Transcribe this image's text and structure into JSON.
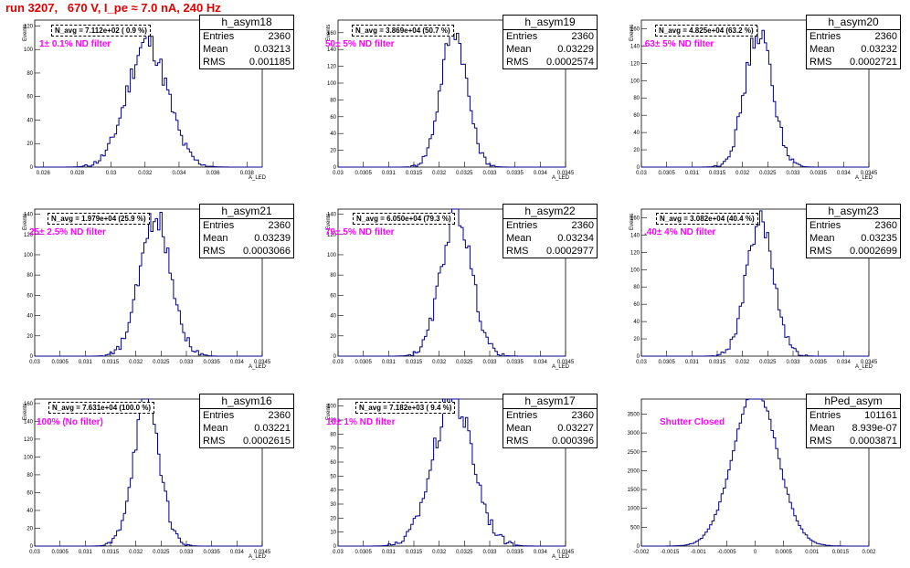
{
  "run_title": "run 3207,   670 V, I_pe ≈ 7.0 nA, 240 Hz",
  "colors": {
    "histogram": "#00008b",
    "title": "#e00000",
    "label": "#ff00ff"
  },
  "chart_data": [
    {
      "type": "histogram",
      "name": "h_asym18",
      "entries": "2360",
      "mean": "0.03213",
      "rms": "0.001185",
      "navg": "N_avg = 7.112e+02 ( 0.9 %)",
      "label": "1± 0.1% ND filter",
      "ylabel": "Events",
      "xlabel": "A_LED",
      "mu": 0.03213,
      "sigma": 0.001185,
      "xlim": [
        0.0255,
        0.0389
      ],
      "ylim": [
        0,
        125
      ],
      "yticks": [
        0,
        20,
        40,
        60,
        80,
        100,
        120
      ],
      "xticks": [
        0.026,
        0.028,
        0.03,
        0.032,
        0.034,
        0.036,
        0.038
      ],
      "xtick_labels": [
        "0.026",
        "0.028",
        "0.03",
        "0.032",
        "0.034",
        "0.036",
        "0.038"
      ]
    },
    {
      "type": "histogram",
      "name": "h_asym19",
      "entries": "2360",
      "mean": "0.03229",
      "rms": "0.0002574",
      "navg": "N_avg = 3.869e+04 (50.7 %)",
      "label": "50± 5% ND filter",
      "ylabel": "Events",
      "xlabel": "A_LED",
      "mu": 0.03229,
      "sigma": 0.0002574,
      "xlim": [
        0.03,
        0.0345
      ],
      "ylim": [
        0,
        175
      ],
      "yticks": [
        0,
        20,
        40,
        60,
        80,
        100,
        120,
        140,
        160
      ],
      "xticks": [
        0.03,
        0.0305,
        0.031,
        0.0315,
        0.032,
        0.0325,
        0.033,
        0.0335,
        0.034,
        0.0345
      ],
      "xtick_labels": [
        "0.03",
        "0.0305",
        "0.031",
        "0.0315",
        "0.032",
        "0.0325",
        "0.033",
        "0.0335",
        "0.034",
        "0.0345"
      ]
    },
    {
      "type": "histogram",
      "name": "h_asym20",
      "entries": "2360",
      "mean": "0.03232",
      "rms": "0.0002721",
      "navg": "N_avg = 4.825e+04 (63.2 %)",
      "label": ".63± 5% ND filter",
      "ylabel": "Events",
      "xlabel": "A_LED",
      "mu": 0.03232,
      "sigma": 0.0002721,
      "xlim": [
        0.03,
        0.0345
      ],
      "ylim": [
        0,
        170
      ],
      "yticks": [
        0,
        20,
        40,
        60,
        80,
        100,
        120,
        140,
        160
      ],
      "xticks": [
        0.03,
        0.0305,
        0.031,
        0.0315,
        0.032,
        0.0325,
        0.033,
        0.0335,
        0.034,
        0.0345
      ],
      "xtick_labels": [
        "0.03",
        "0.0305",
        "0.031",
        "0.0315",
        "0.032",
        "0.0325",
        "0.033",
        "0.0335",
        "0.034",
        "0.0345"
      ]
    },
    {
      "type": "histogram",
      "name": "h_asym21",
      "entries": "2360",
      "mean": "0.03239",
      "rms": "0.0003066",
      "navg": "N_avg = 1.979e+04 (25.9 %)",
      "label": "25± 2.5% ND filter",
      "ylabel": "Events",
      "xlabel": "A_LED",
      "mu": 0.03239,
      "sigma": 0.0003066,
      "xlim": [
        0.03,
        0.0345
      ],
      "ylim": [
        0,
        145
      ],
      "yticks": [
        0,
        20,
        40,
        60,
        80,
        100,
        120,
        140
      ],
      "xticks": [
        0.03,
        0.0305,
        0.031,
        0.0315,
        0.032,
        0.0325,
        0.033,
        0.0335,
        0.034,
        0.0345
      ],
      "xtick_labels": [
        "0.03",
        "0.0305",
        "0.031",
        "0.0315",
        "0.032",
        "0.0325",
        "0.033",
        "0.0335",
        "0.034",
        "0.0345"
      ]
    },
    {
      "type": "histogram",
      "name": "h_asym22",
      "entries": "2360",
      "mean": "0.03234",
      "rms": "0.0002977",
      "navg": "N_avg = 6.050e+04 (79.3 %)",
      "label": "79± 5% ND filter",
      "ylabel": "Events",
      "xlabel": "A_LED",
      "mu": 0.03234,
      "sigma": 0.0002977,
      "xlim": [
        0.03,
        0.0345
      ],
      "ylim": [
        0,
        145
      ],
      "yticks": [
        0,
        20,
        40,
        60,
        80,
        100,
        120,
        140
      ],
      "xticks": [
        0.03,
        0.0305,
        0.031,
        0.0315,
        0.032,
        0.0325,
        0.033,
        0.0335,
        0.034,
        0.0345
      ],
      "xtick_labels": [
        "0.03",
        "0.0305",
        "0.031",
        "0.0315",
        "0.032",
        "0.0325",
        "0.033",
        "0.0335",
        "0.034",
        "0.0345"
      ]
    },
    {
      "type": "histogram",
      "name": "h_asym23",
      "entries": "2360",
      "mean": "0.03235",
      "rms": "0.0002699",
      "navg": "N_avg = 3.082e+04 (40.4 %)",
      "label": ".40± 4% ND filter",
      "ylabel": "Events",
      "xlabel": "A_LED",
      "mu": 0.03235,
      "sigma": 0.0002699,
      "xlim": [
        0.03,
        0.0345
      ],
      "ylim": [
        0,
        170
      ],
      "yticks": [
        0,
        20,
        40,
        60,
        80,
        100,
        120,
        140,
        160
      ],
      "xticks": [
        0.03,
        0.0305,
        0.031,
        0.0315,
        0.032,
        0.0325,
        0.033,
        0.0335,
        0.034,
        0.0345
      ],
      "xtick_labels": [
        "0.03",
        "0.0305",
        "0.031",
        "0.0315",
        "0.032",
        "0.0325",
        "0.033",
        "0.0335",
        "0.034",
        "0.0345"
      ]
    },
    {
      "type": "histogram",
      "name": "h_asym16",
      "entries": "2360",
      "mean": "0.03221",
      "rms": "0.0002615",
      "navg": "N_avg = 7.631e+04 (100.0 %)",
      "label": "100% (No filter)",
      "ylabel": "Events",
      "xlabel": "A_LED",
      "mu": 0.03221,
      "sigma": 0.0002615,
      "xlim": [
        0.03,
        0.0345
      ],
      "ylim": [
        0,
        165
      ],
      "yticks": [
        0,
        20,
        40,
        60,
        80,
        100,
        120,
        140,
        160
      ],
      "xticks": [
        0.03,
        0.0305,
        0.031,
        0.0315,
        0.032,
        0.0325,
        0.033,
        0.0335,
        0.034,
        0.0345
      ],
      "xtick_labels": [
        "0.03",
        "0.0305",
        "0.031",
        "0.0315",
        "0.032",
        "0.0325",
        "0.033",
        "0.0335",
        "0.034",
        "0.0345"
      ]
    },
    {
      "type": "histogram",
      "name": "h_asym17",
      "entries": "2360",
      "mean": "0.03227",
      "rms": "0.000396",
      "navg": "N_avg = 7.182e+03 ( 9.4 %)",
      "label": "10± 1% ND filter",
      "ylabel": "Events",
      "xlabel": "A_LED",
      "mu": 0.03227,
      "sigma": 0.000396,
      "xlim": [
        0.03,
        0.0345
      ],
      "ylim": [
        0,
        105
      ],
      "yticks": [
        0,
        10,
        20,
        30,
        40,
        50,
        60,
        70,
        80,
        90,
        100
      ],
      "xticks": [
        0.03,
        0.0305,
        0.031,
        0.0315,
        0.032,
        0.0325,
        0.033,
        0.0335,
        0.034,
        0.0345
      ],
      "xtick_labels": [
        "0.03",
        "0.0305",
        "0.031",
        "0.0315",
        "0.032",
        "0.0325",
        "0.033",
        "0.0335",
        "0.034",
        "0.0345"
      ]
    },
    {
      "type": "histogram",
      "name": "hPed_asym",
      "entries": "101161",
      "mean": "8.939e-07",
      "rms": "0.0003871",
      "navg": "",
      "label": "Shutter Closed",
      "ylabel": "",
      "xlabel": "",
      "mu": 0.0,
      "sigma": 0.0003871,
      "xlim": [
        -0.002,
        0.002
      ],
      "ylim": [
        0,
        3900
      ],
      "yticks": [
        0,
        500,
        1000,
        1500,
        2000,
        2500,
        3000,
        3500
      ],
      "xticks": [
        -0.002,
        -0.0015,
        -0.001,
        -0.0005,
        0,
        0.0005,
        0.001,
        0.0015,
        0.002
      ],
      "xtick_labels": [
        "-0.002",
        "-0.0015",
        "-0.001",
        "-0.0005",
        "0",
        "0.0005",
        "0.001",
        "0.0015",
        "0.002"
      ]
    }
  ]
}
